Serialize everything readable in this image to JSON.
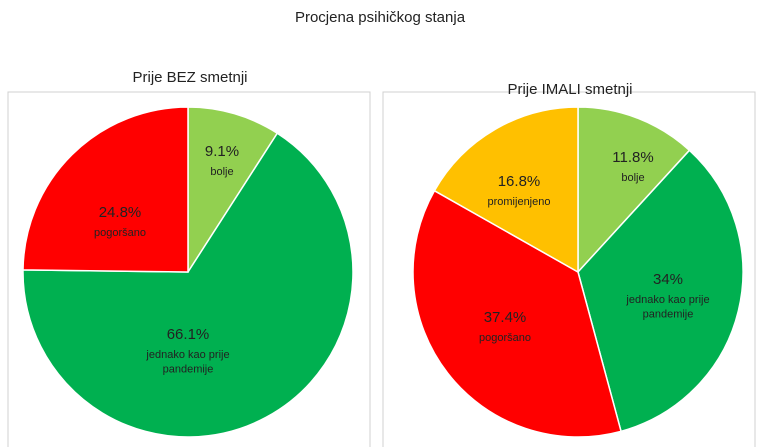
{
  "title": "Procjena psihičkog stanja",
  "chart_data": [
    {
      "type": "pie",
      "title": "Prije BEZ smetnji",
      "categories": [
        "bolje",
        "jednako kao prije pandemije",
        "pogoršano"
      ],
      "values": [
        9.1,
        66.1,
        24.8
      ],
      "value_labels": [
        "9.1%",
        "66.1%",
        "24.8%"
      ],
      "colors": [
        "#92d050",
        "#00b050",
        "#ff0000"
      ]
    },
    {
      "type": "pie",
      "title": "Prije IMALI smetnji",
      "categories": [
        "bolje",
        "jednako kao prije pandemije",
        "pogoršano",
        "promijenjeno"
      ],
      "values": [
        11.8,
        34,
        37.4,
        16.8
      ],
      "value_labels": [
        "11.8%",
        "34%",
        "37.4%",
        "16.8%"
      ],
      "colors": [
        "#92d050",
        "#00b050",
        "#ff0000",
        "#ffc000"
      ]
    }
  ]
}
